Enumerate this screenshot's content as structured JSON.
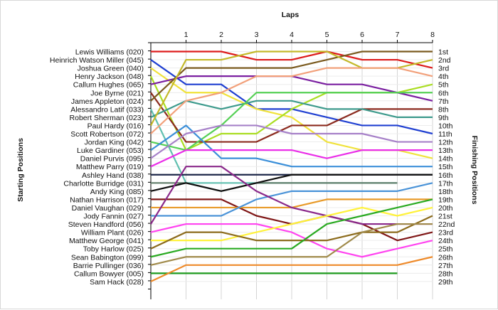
{
  "chart_data": {
    "type": "line",
    "title": "Laps",
    "ylabel_left": "Starting Positions",
    "ylabel_right": "Finishing Positions",
    "x": [
      0,
      1,
      2,
      3,
      4,
      5,
      6,
      7,
      8
    ],
    "x_tick_labels": [
      "1",
      "2",
      "3",
      "4",
      "5",
      "6",
      "7",
      "8"
    ],
    "position_labels": [
      "1st",
      "2nd",
      "3rd",
      "4th",
      "5th",
      "6th",
      "7th",
      "8th",
      "9th",
      "10th",
      "11th",
      "12th",
      "13th",
      "14th",
      "15th",
      "16th",
      "17th",
      "18th",
      "19th",
      "20th",
      "21st",
      "22nd",
      "23rd",
      "24th",
      "25th",
      "26th",
      "27th",
      "28th",
      "29th"
    ],
    "grid": true,
    "series": [
      {
        "name": "Lewis Williams (020)",
        "color": "#dd1c1c",
        "positions": [
          1,
          1,
          1,
          2,
          2,
          1,
          2,
          2,
          3
        ]
      },
      {
        "name": "Heinrich Watson Miller (045)",
        "color": "#1f3fd1",
        "positions": [
          2,
          5,
          5,
          8,
          8,
          9,
          10,
          10,
          11
        ]
      },
      {
        "name": "Joshua Green (040)",
        "color": "#f0e23a",
        "positions": [
          3,
          6,
          6,
          8,
          9,
          12,
          13,
          13,
          14
        ]
      },
      {
        "name": "Henry Jackson (048)",
        "color": "#aadd22",
        "positions": [
          4,
          13,
          11,
          11,
          8,
          6,
          6,
          6,
          5
        ]
      },
      {
        "name": "Callum Hughes (065)",
        "color": "#7a1fa0",
        "positions": [
          5,
          4,
          4,
          4,
          4,
          5,
          5,
          6,
          7
        ]
      },
      {
        "name": "Joe Byrne (021)",
        "color": "#8b2a1e",
        "positions": [
          6,
          12,
          12,
          12,
          10,
          10,
          8,
          8,
          8
        ]
      },
      {
        "name": "James Appleton (024)",
        "color": "#7a5a1e",
        "positions": [
          7,
          3,
          3,
          3,
          3,
          2,
          1,
          1,
          1
        ]
      },
      {
        "name": "Alessandro Latif (033)",
        "color": "#61c0b0",
        "positions": [
          8,
          17,
          17,
          17,
          17,
          17,
          17,
          17,
          null
        ]
      },
      {
        "name": "Robert Sherman (023)",
        "color": "#3d9a8c",
        "positions": [
          9,
          7,
          8,
          7,
          7,
          8,
          8,
          9,
          9
        ]
      },
      {
        "name": "Paul Hardy (016)",
        "color": "#c4b92a",
        "positions": [
          10,
          2,
          2,
          1,
          1,
          1,
          3,
          3,
          2
        ]
      },
      {
        "name": "Scott Robertson (072)",
        "color": "#f2a07a",
        "positions": [
          11,
          7,
          6,
          4,
          4,
          3,
          3,
          3,
          4
        ]
      },
      {
        "name": "Jordan King (042)",
        "color": "#55d055",
        "positions": [
          12,
          13,
          10,
          6,
          6,
          6,
          6,
          6,
          6
        ]
      },
      {
        "name": "Luke Gardiner (053)",
        "color": "#3b8fd9",
        "positions": [
          13,
          10,
          14,
          14,
          15,
          15,
          15,
          15,
          15
        ]
      },
      {
        "name": "Daniel Purvis (095)",
        "color": "#a680c8",
        "positions": [
          14,
          11,
          10,
          10,
          11,
          11,
          11,
          12,
          12
        ]
      },
      {
        "name": "Matthew Parry (019)",
        "color": "#ea2ee8",
        "positions": [
          15,
          13,
          13,
          13,
          13,
          14,
          13,
          13,
          13
        ]
      },
      {
        "name": "Ashley Hand (038)",
        "color": "#1c2648",
        "positions": [
          16,
          16,
          16,
          16,
          16,
          16,
          16,
          16,
          16
        ]
      },
      {
        "name": "Charlotte Burridge (031)",
        "color": "#607d6a",
        "positions": [
          17,
          17,
          18,
          17,
          17,
          17,
          17,
          17,
          null
        ]
      },
      {
        "name": "Andy King (085)",
        "color": "#111111",
        "positions": [
          18,
          17,
          18,
          17,
          16,
          16,
          16,
          16,
          16
        ]
      },
      {
        "name": "Nathan Harrison (017)",
        "color": "#7f1616",
        "positions": [
          19,
          19,
          19,
          21,
          22,
          21,
          22,
          24,
          23
        ]
      },
      {
        "name": "Daniel Vaughan (029)",
        "color": "#e89a28",
        "positions": [
          20,
          20,
          20,
          20,
          20,
          19,
          19,
          19,
          19
        ]
      },
      {
        "name": "Jody Fannin (027)",
        "color": "#4a93d8",
        "positions": [
          21,
          21,
          21,
          19,
          18,
          18,
          18,
          18,
          17
        ]
      },
      {
        "name": "Steven Handford (056)",
        "color": "#8a288a",
        "positions": [
          22,
          15,
          15,
          18,
          20,
          21,
          22,
          22,
          22
        ]
      },
      {
        "name": "William Plant (026)",
        "color": "#ff44f0",
        "positions": [
          23,
          22,
          22,
          22,
          23,
          25,
          26,
          25,
          24
        ]
      },
      {
        "name": "Matthew George (041)",
        "color": "#fff23a",
        "positions": [
          24,
          24,
          24,
          23,
          22,
          21,
          20,
          21,
          20
        ]
      },
      {
        "name": "Toby Harlow (025)",
        "color": "#8c6b1c",
        "positions": [
          25,
          23,
          23,
          24,
          24,
          24,
          23,
          23,
          21
        ]
      },
      {
        "name": "Sean Babington (099)",
        "color": "#2aaa22",
        "positions": [
          26,
          25,
          25,
          25,
          25,
          22,
          21,
          20,
          19
        ]
      },
      {
        "name": "Barrie Pullinger (036)",
        "color": "#a08a4a",
        "positions": [
          27,
          26,
          26,
          26,
          26,
          26,
          23,
          22,
          22
        ]
      },
      {
        "name": "Callum Bowyer (005)",
        "color": "#1d9a1d",
        "positions": [
          28,
          28,
          28,
          28,
          28,
          28,
          28,
          28,
          null
        ]
      },
      {
        "name": "Sam Hack (028)",
        "color": "#ee8a2a",
        "positions": [
          29,
          27,
          27,
          27,
          27,
          27,
          27,
          27,
          26
        ]
      }
    ]
  }
}
